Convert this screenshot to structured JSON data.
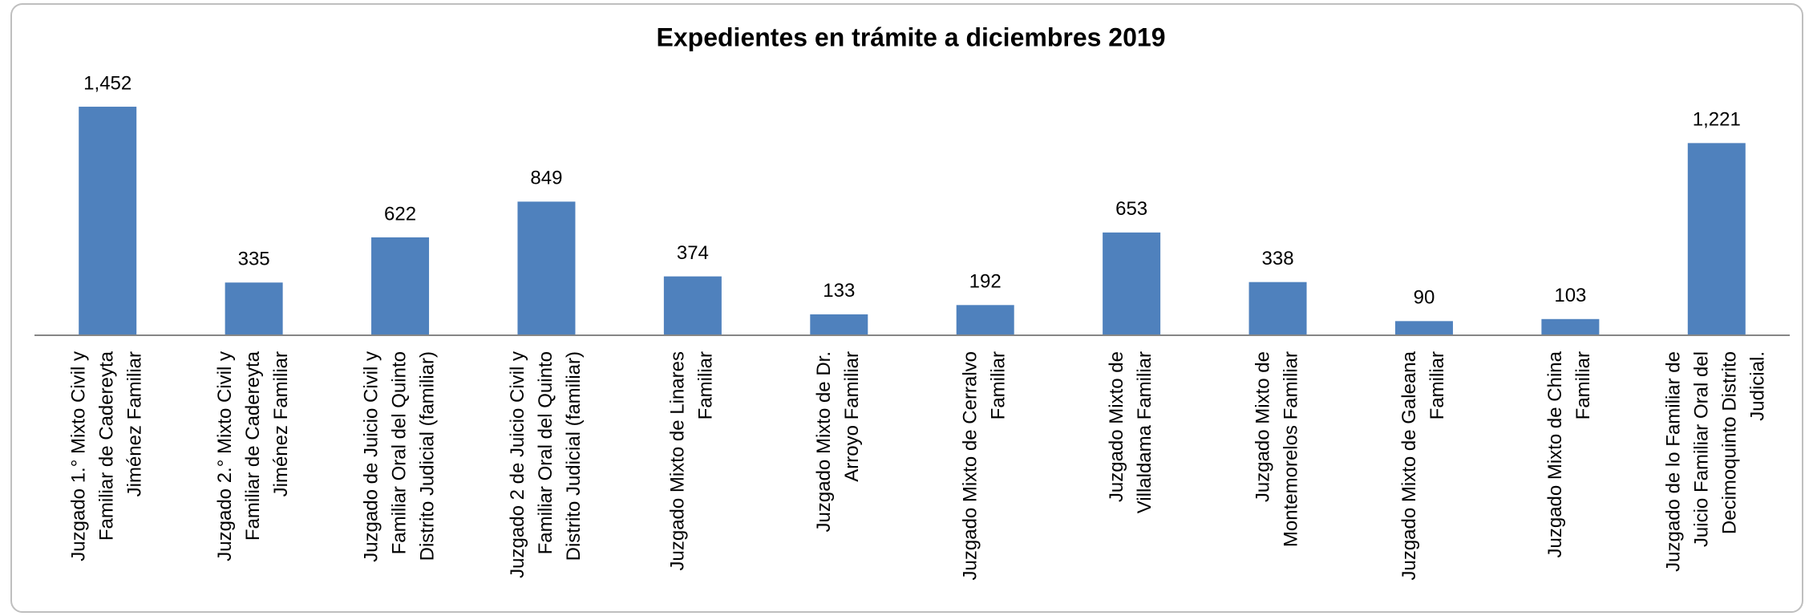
{
  "chart_data": {
    "type": "bar",
    "title": "Expedientes en trámite a diciembres 2019",
    "categories": [
      [
        "Juzgado 1.° Mixto Civil y",
        "Familiar de Cadereyta",
        "Jiménez Familiar"
      ],
      [
        "Juzgado 2.° Mixto Civil y",
        "Familiar de Cadereyta",
        "Jiménez Familiar"
      ],
      [
        "Juzgado de Juicio Civil y",
        "Familiar Oral del  Quinto",
        "Distrito Judicial (familiar)"
      ],
      [
        "Juzgado 2 de Juicio Civil y",
        "Familiar Oral del  Quinto",
        "Distrito Judicial (familiar)"
      ],
      [
        "Juzgado Mixto de Linares",
        "Familiar"
      ],
      [
        "Juzgado Mixto de Dr.",
        "Arroyo Familiar"
      ],
      [
        "Juzgado Mixto de Cerralvo",
        "Familiar"
      ],
      [
        "Juzgado Mixto de",
        "Villaldama Familiar"
      ],
      [
        "Juzgado Mixto de",
        "Montemorelos Familiar"
      ],
      [
        "Juzgado Mixto de Galeana",
        "Familiar"
      ],
      [
        "Juzgado Mixto de China",
        "Familiar"
      ],
      [
        "Juzgado de lo Familiar de",
        "Juicio Familiar Oral del",
        "Decimoquinto Distrito",
        "Judicial."
      ]
    ],
    "values": [
      1452,
      335,
      622,
      849,
      374,
      133,
      192,
      653,
      338,
      90,
      103,
      1221
    ],
    "value_labels": [
      "1,452",
      "335",
      "622",
      "849",
      "374",
      "133",
      "192",
      "653",
      "338",
      "90",
      "103",
      "1,221"
    ],
    "color": "#4f81bd",
    "ylim": [
      0,
      1600
    ]
  }
}
